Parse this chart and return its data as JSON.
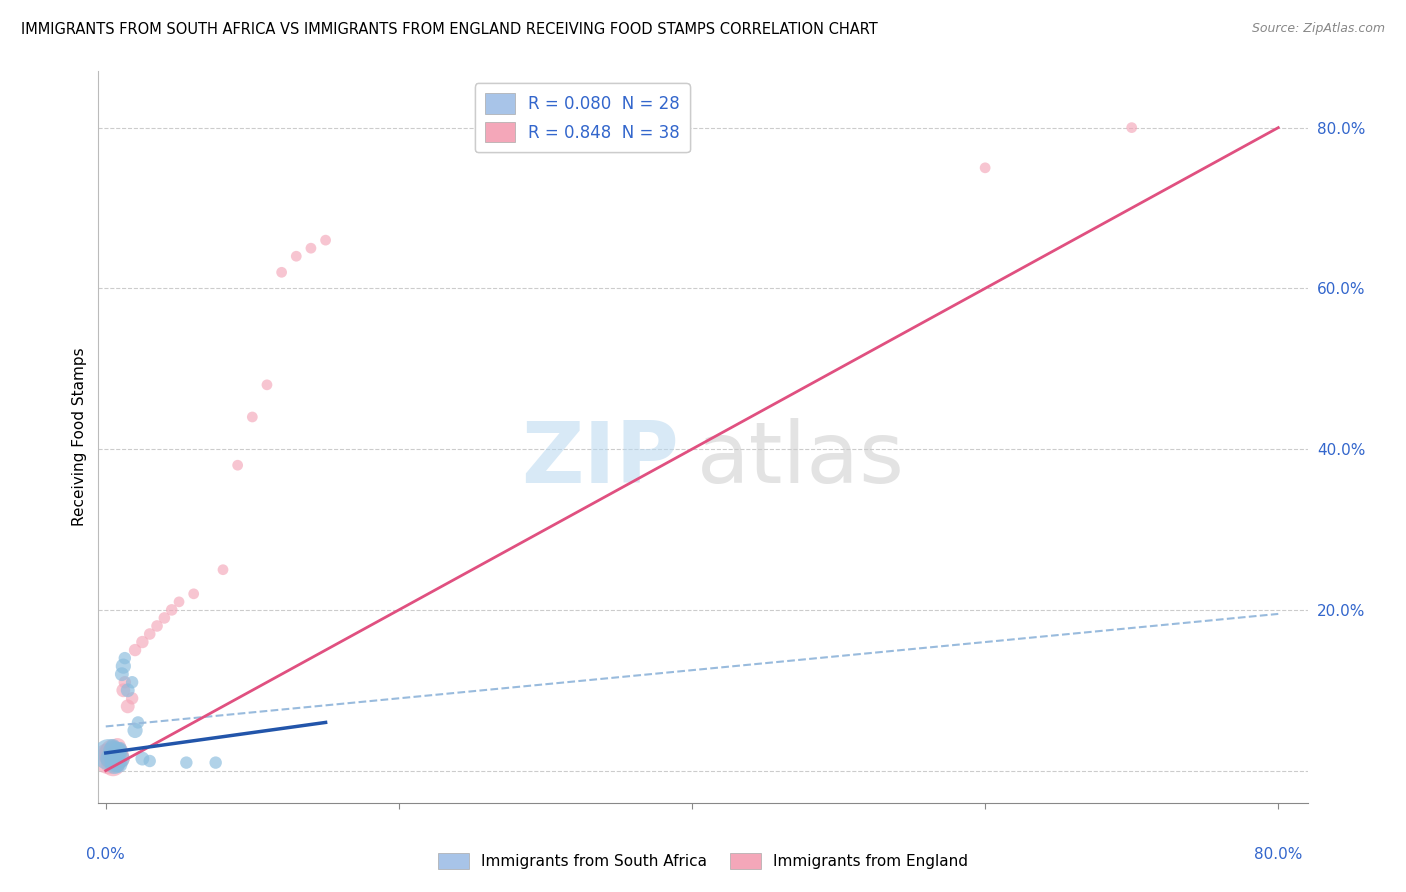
{
  "title": "IMMIGRANTS FROM SOUTH AFRICA VS IMMIGRANTS FROM ENGLAND RECEIVING FOOD STAMPS CORRELATION CHART",
  "source": "Source: ZipAtlas.com",
  "ylabel": "Receiving Food Stamps",
  "watermark_zip": "ZIP",
  "watermark_atlas": "atlas",
  "legend_entries": [
    {
      "label": "R = 0.080  N = 28",
      "color": "#a8c4e8"
    },
    {
      "label": "R = 0.848  N = 38",
      "color": "#f4a7b9"
    }
  ],
  "south_africa_x": [
    0.002,
    0.003,
    0.004,
    0.005,
    0.005,
    0.005,
    0.006,
    0.006,
    0.007,
    0.007,
    0.008,
    0.008,
    0.009,
    0.009,
    0.01,
    0.01,
    0.01,
    0.011,
    0.012,
    0.013,
    0.015,
    0.018,
    0.02,
    0.022,
    0.025,
    0.03,
    0.055,
    0.075
  ],
  "south_africa_y": [
    0.02,
    0.015,
    0.018,
    0.025,
    0.012,
    0.03,
    0.022,
    0.008,
    0.018,
    0.01,
    0.025,
    0.015,
    0.02,
    0.008,
    0.025,
    0.015,
    0.028,
    0.12,
    0.13,
    0.14,
    0.1,
    0.11,
    0.05,
    0.06,
    0.015,
    0.012,
    0.01,
    0.01
  ],
  "south_africa_sizes": [
    500,
    200,
    150,
    200,
    150,
    120,
    100,
    200,
    150,
    200,
    150,
    100,
    120,
    150,
    100,
    180,
    80,
    100,
    120,
    80,
    100,
    80,
    120,
    80,
    100,
    80,
    80,
    80
  ],
  "england_x": [
    0.002,
    0.003,
    0.004,
    0.004,
    0.005,
    0.005,
    0.006,
    0.006,
    0.007,
    0.007,
    0.008,
    0.008,
    0.009,
    0.01,
    0.01,
    0.011,
    0.012,
    0.013,
    0.015,
    0.018,
    0.02,
    0.025,
    0.03,
    0.035,
    0.04,
    0.045,
    0.05,
    0.06,
    0.08,
    0.09,
    0.1,
    0.11,
    0.12,
    0.13,
    0.14,
    0.15,
    0.6,
    0.7
  ],
  "england_y": [
    0.015,
    0.02,
    0.012,
    0.025,
    0.018,
    0.008,
    0.022,
    0.01,
    0.015,
    0.025,
    0.018,
    0.03,
    0.02,
    0.025,
    0.015,
    0.02,
    0.1,
    0.11,
    0.08,
    0.09,
    0.15,
    0.16,
    0.17,
    0.18,
    0.19,
    0.2,
    0.21,
    0.22,
    0.25,
    0.38,
    0.44,
    0.48,
    0.62,
    0.64,
    0.65,
    0.66,
    0.75,
    0.8
  ],
  "england_sizes": [
    500,
    300,
    200,
    250,
    200,
    300,
    150,
    200,
    150,
    180,
    120,
    150,
    100,
    120,
    180,
    100,
    100,
    80,
    100,
    80,
    80,
    80,
    70,
    70,
    70,
    70,
    60,
    60,
    60,
    60,
    60,
    60,
    60,
    60,
    60,
    60,
    60,
    60
  ],
  "sa_line_x": [
    0.0,
    0.15
  ],
  "sa_line_y": [
    0.022,
    0.06
  ],
  "eng_line_x": [
    0.0,
    0.8
  ],
  "eng_line_y": [
    0.0,
    0.8
  ],
  "dash_line_x": [
    0.0,
    0.8
  ],
  "dash_line_y": [
    0.055,
    0.195
  ],
  "xlim": [
    -0.005,
    0.82
  ],
  "ylim": [
    -0.04,
    0.87
  ],
  "yticks": [
    0.0,
    0.2,
    0.4,
    0.6,
    0.8
  ],
  "yticklabels": [
    "",
    "20.0%",
    "40.0%",
    "60.0%",
    "80.0%"
  ],
  "sa_color": "#88bbdd",
  "eng_color": "#f4a7b9",
  "sa_line_color": "#2255aa",
  "eng_line_color": "#e05080",
  "dash_color": "#99bbdd"
}
